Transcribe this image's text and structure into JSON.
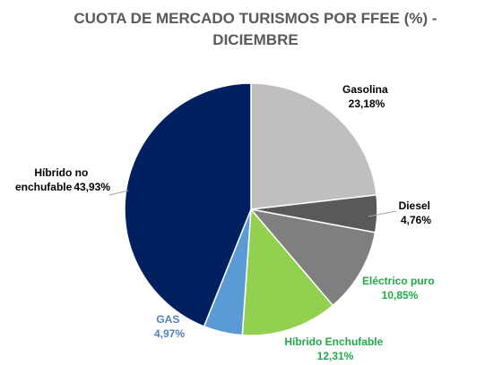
{
  "chart_data": {
    "type": "pie",
    "title_lines": [
      "CUOTA DE MERCADO TURISMOS POR FFEE (%)  -",
      "DICIEMBRE"
    ],
    "slices": [
      {
        "label": "Gasolina",
        "value_text": "23,18%",
        "value": 23.18,
        "color": "#bfbfbf",
        "label_color": "#000000"
      },
      {
        "label": "Diesel",
        "value_text": "4,76%",
        "value": 4.76,
        "color": "#595959",
        "label_color": "#000000"
      },
      {
        "label": "Eléctrico puro",
        "value_text": "10,85%",
        "value": 10.85,
        "color": "#7f7f7f",
        "label_color": "#21a84a"
      },
      {
        "label": "Híbrido Enchufable",
        "value_text": "12,31%",
        "value": 12.31,
        "color": "#92d050",
        "label_color": "#21a84a"
      },
      {
        "label": "GAS",
        "value_text": "4,97%",
        "value": 4.97,
        "color": "#5b9bd5",
        "label_color": "#4f81bd"
      },
      {
        "label": "Híbrido no enchufable",
        "label_lines": [
          "Híbrido no",
          "enchufable"
        ],
        "value_text": "43,93%",
        "value": 43.93,
        "color": "#002060",
        "label_color": "#000000"
      }
    ]
  }
}
